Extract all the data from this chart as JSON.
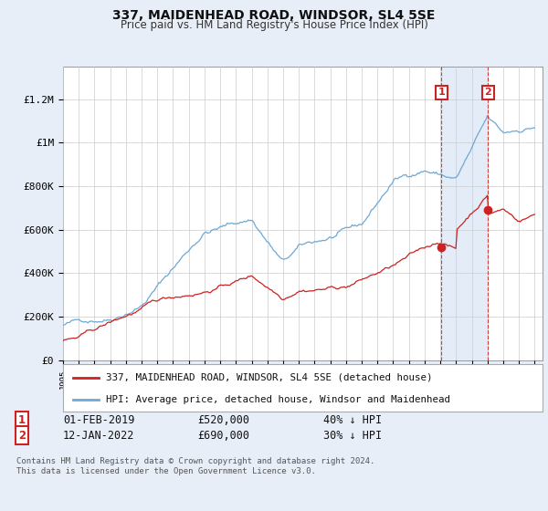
{
  "title": "337, MAIDENHEAD ROAD, WINDSOR, SL4 5SE",
  "subtitle": "Price paid vs. HM Land Registry's House Price Index (HPI)",
  "hpi_label": "HPI: Average price, detached house, Windsor and Maidenhead",
  "property_label": "337, MAIDENHEAD ROAD, WINDSOR, SL4 5SE (detached house)",
  "footnote": "Contains HM Land Registry data © Crown copyright and database right 2024.\nThis data is licensed under the Open Government Licence v3.0.",
  "hpi_color": "#6fa8d4",
  "property_color": "#cc2222",
  "background_color": "#e8eef8",
  "plot_bg": "#ffffff",
  "legend_bg": "#ffffff",
  "shade_color": "#dce8f5",
  "annotation1": {
    "label": "1",
    "date": "01-FEB-2019",
    "price": "£520,000",
    "hpi_diff": "40% ↓ HPI"
  },
  "annotation2": {
    "label": "2",
    "date": "12-JAN-2022",
    "price": "£690,000",
    "hpi_diff": "30% ↓ HPI"
  },
  "sale1_year": 2019.08,
  "sale2_year": 2022.04,
  "sale1_value": 520000,
  "sale2_value": 690000,
  "ylim": [
    0,
    1350000
  ],
  "yticks": [
    0,
    200000,
    400000,
    600000,
    800000,
    1000000,
    1200000
  ],
  "ytick_labels": [
    "£0",
    "£200K",
    "£400K",
    "£600K",
    "£800K",
    "£1M",
    "£1.2M"
  ],
  "xlim_start": 1995,
  "xlim_end": 2025.5
}
